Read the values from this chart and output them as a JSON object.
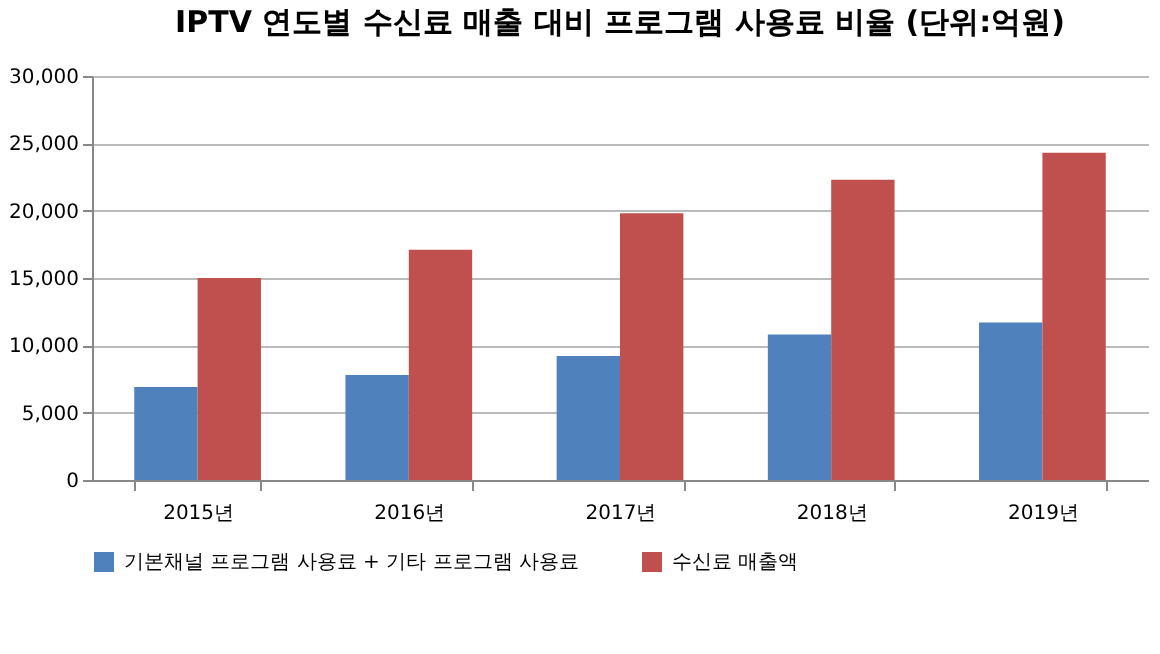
{
  "chart_data": {
    "type": "bar",
    "title": "IPTV 연도별 수신료 매출 대비 프로그램 사용료 비율 (단위:억원)",
    "categories": [
      "2015년",
      "2016년",
      "2017년",
      "2018년",
      "2019년"
    ],
    "series": [
      {
        "name": "기본채널 프로그램 사용료 + 기타 프로그램 사용료",
        "color": "#4f81bd",
        "values": [
          6900,
          7800,
          9200,
          10800,
          11700
        ]
      },
      {
        "name": "수신료 매출액",
        "color": "#c0504d",
        "values": [
          15000,
          17100,
          19800,
          22300,
          24300
        ]
      }
    ],
    "ylim": [
      0,
      30000
    ],
    "yticks": [
      0,
      {
        "value": 5000,
        "label": "5,000"
      },
      {
        "value": 10000,
        "label": "10,000"
      },
      {
        "value": 15000,
        "label": "15,000"
      },
      {
        "value": 20000,
        "label": "20,000"
      },
      {
        "value": 25000,
        "label": "25,000"
      },
      {
        "value": 30000,
        "label": "30,000"
      }
    ],
    "grid": "y",
    "legend": "bottom"
  }
}
